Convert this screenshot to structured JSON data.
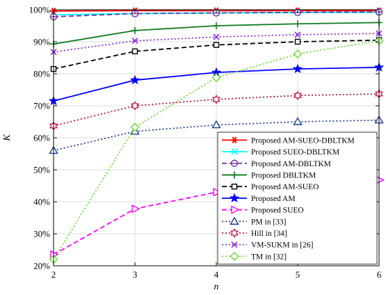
{
  "chart_data": {
    "type": "line",
    "xlabel": "n",
    "ylabel": "K",
    "xlim": [
      2,
      6
    ],
    "ylim": [
      20,
      100
    ],
    "x": [
      2,
      3,
      4,
      5,
      6
    ],
    "xticks": [
      "2",
      "3",
      "4",
      "5",
      "6"
    ],
    "yticks": [
      "20%",
      "30%",
      "40%",
      "50%",
      "60%",
      "70%",
      "80%",
      "90%",
      "100%"
    ],
    "grid": true,
    "legend_position": "bottom-right",
    "series": [
      {
        "name": "Proposed AM-SUEO-DBLTKM",
        "values": [
          99.6,
          99.7,
          99.7,
          99.7,
          99.7
        ],
        "color": "#ff0000",
        "dash": "solid",
        "marker": "star6"
      },
      {
        "name": "Proposed SUEO-DBLTKM",
        "values": [
          98.4,
          98.8,
          99.0,
          99.1,
          99.2
        ],
        "color": "#00ffff",
        "dash": "solid",
        "marker": "x"
      },
      {
        "name": "Proposed AM-DBLTKM",
        "values": [
          97.8,
          98.8,
          99.0,
          99.2,
          99.3
        ],
        "color": "#7030a0",
        "dash": "dashed",
        "marker": "circle-bar"
      },
      {
        "name": "Proposed DBLTKM",
        "values": [
          89.3,
          93.5,
          95.0,
          95.6,
          96.0
        ],
        "color": "#0d7a1f",
        "dash": "solid",
        "marker": "plus"
      },
      {
        "name": "Proposed AM-SUEO",
        "values": [
          81.5,
          87.0,
          89.0,
          90.0,
          90.5
        ],
        "color": "#000000",
        "dash": "dashed",
        "marker": "square"
      },
      {
        "name": "Proposed AM",
        "values": [
          71.5,
          78.0,
          80.4,
          81.5,
          82.0
        ],
        "color": "#0000ff",
        "dash": "solid",
        "marker": "star5"
      },
      {
        "name": "Proposed SUEO",
        "values": [
          23.5,
          37.8,
          43.0,
          47.0,
          46.8
        ],
        "color": "#ff00ff",
        "dash": "dashed",
        "marker": "triangle-right"
      },
      {
        "name": "PM in [33]",
        "values": [
          56.0,
          62.0,
          64.0,
          65.0,
          65.5
        ],
        "color": "#1f3f8f",
        "dash": "dotted",
        "marker": "triangle-up"
      },
      {
        "name": "Hill in [34]",
        "values": [
          63.7,
          70.0,
          72.0,
          73.2,
          73.7
        ],
        "color": "#c0143c",
        "dash": "dotted",
        "marker": "hexagram"
      },
      {
        "name": "VM-SUKM in [26]",
        "values": [
          86.8,
          90.3,
          91.5,
          92.2,
          92.6
        ],
        "color": "#8a2be2",
        "dash": "dotted",
        "marker": "x"
      },
      {
        "name": "TM in [32]",
        "values": [
          22.0,
          63.3,
          78.8,
          86.2,
          90.3
        ],
        "color": "#66dd33",
        "dash": "dotted",
        "marker": "diamond"
      }
    ]
  }
}
